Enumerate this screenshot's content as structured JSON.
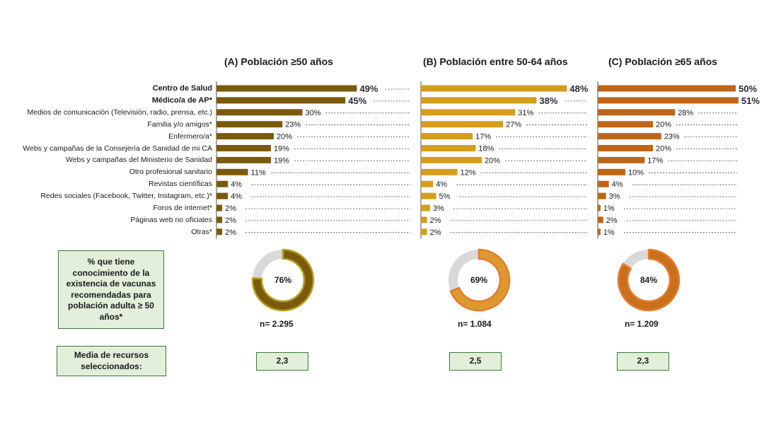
{
  "chart_data": {
    "type": "bar",
    "orientation": "horizontal",
    "categories": [
      "Centro de Salud",
      "Médico/a de AP*",
      "Medios de comunicación (Televisión, radio, prensa, etc.)",
      "Familia y/o amigos*",
      "Enfermero/a*",
      "Webs y campañas de la Consejería de Sanidad de mi CA",
      "Webs y campañas del Ministerio de Sanidad",
      "Otro profesional sanitario",
      "Revistas científicas",
      "Redes sociales (Facebook, Twitter, Instagram, etc.)*",
      "Foros de internet*",
      "Páginas web no oficiales",
      "Otras*"
    ],
    "bold_categories": [
      0,
      1
    ],
    "series": [
      {
        "name": "(A) Población ≥50 años",
        "color": "#7a5b0c",
        "values": [
          49,
          45,
          30,
          23,
          20,
          19,
          19,
          11,
          4,
          4,
          2,
          2,
          2
        ]
      },
      {
        "name": "(B) Población entre 50-64 años",
        "color": "#d59d1c",
        "values": [
          48,
          38,
          31,
          27,
          17,
          18,
          20,
          12,
          4,
          5,
          3,
          2,
          2
        ]
      },
      {
        "name": "(C) Población ≥65 años",
        "color": "#bf6516",
        "values": [
          50,
          51,
          28,
          20,
          23,
          20,
          17,
          10,
          4,
          3,
          1,
          2,
          1
        ]
      }
    ],
    "value_suffix": "%",
    "donuts": [
      {
        "value": 76,
        "label": "76%",
        "color": "#7a5b0c",
        "rim": "#b8a020",
        "rest_color": "#d9d9d9"
      },
      {
        "value": 69,
        "label": "69%",
        "color": "#dc9a2e",
        "rim": "#e87a2e",
        "rest_color": "#d9d9d9"
      },
      {
        "value": 84,
        "label": "84%",
        "color": "#c8701c",
        "rim": "#e87a2e",
        "rest_color": "#d9d9d9"
      }
    ],
    "n_labels": [
      "n= 2.295",
      "n= 1.084",
      "n= 1.209"
    ],
    "means": [
      "2,3",
      "2,5",
      "2,3"
    ]
  },
  "knowledge_label": "% que tiene conocimiento de la existencia de vacunas recomendadas para población adulta ≥ 50 años*",
  "mean_label": "Media de recursos seleccionados:"
}
